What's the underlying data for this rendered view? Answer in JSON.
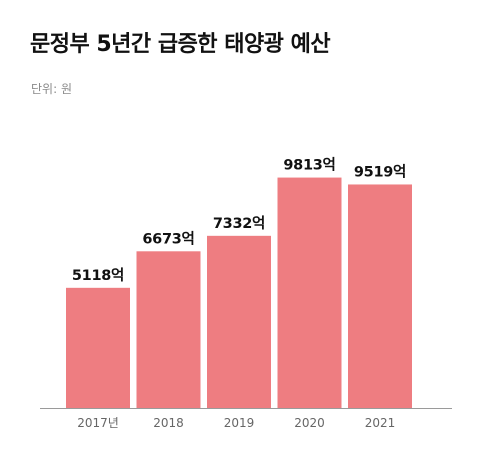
{
  "title": "문정부 5년간 급증한 태양광 예산",
  "unit_label": "단위: 원",
  "colors": {
    "bar": "#ee7d81",
    "axis": "#9a9a9a",
    "text": "#111111",
    "tick": "#666666"
  },
  "chart_data": {
    "type": "bar",
    "title": "문정부 5년간 급증한 태양광 예산",
    "categories": [
      "2017년",
      "2018",
      "2019",
      "2020",
      "2021"
    ],
    "values": [
      5118,
      6673,
      7332,
      9813,
      9519
    ],
    "data_labels": [
      "5118억",
      "6673억",
      "7332억",
      "9813억",
      "9519억"
    ],
    "ylim": [
      0,
      11200
    ],
    "grid": false,
    "legend": "none"
  }
}
